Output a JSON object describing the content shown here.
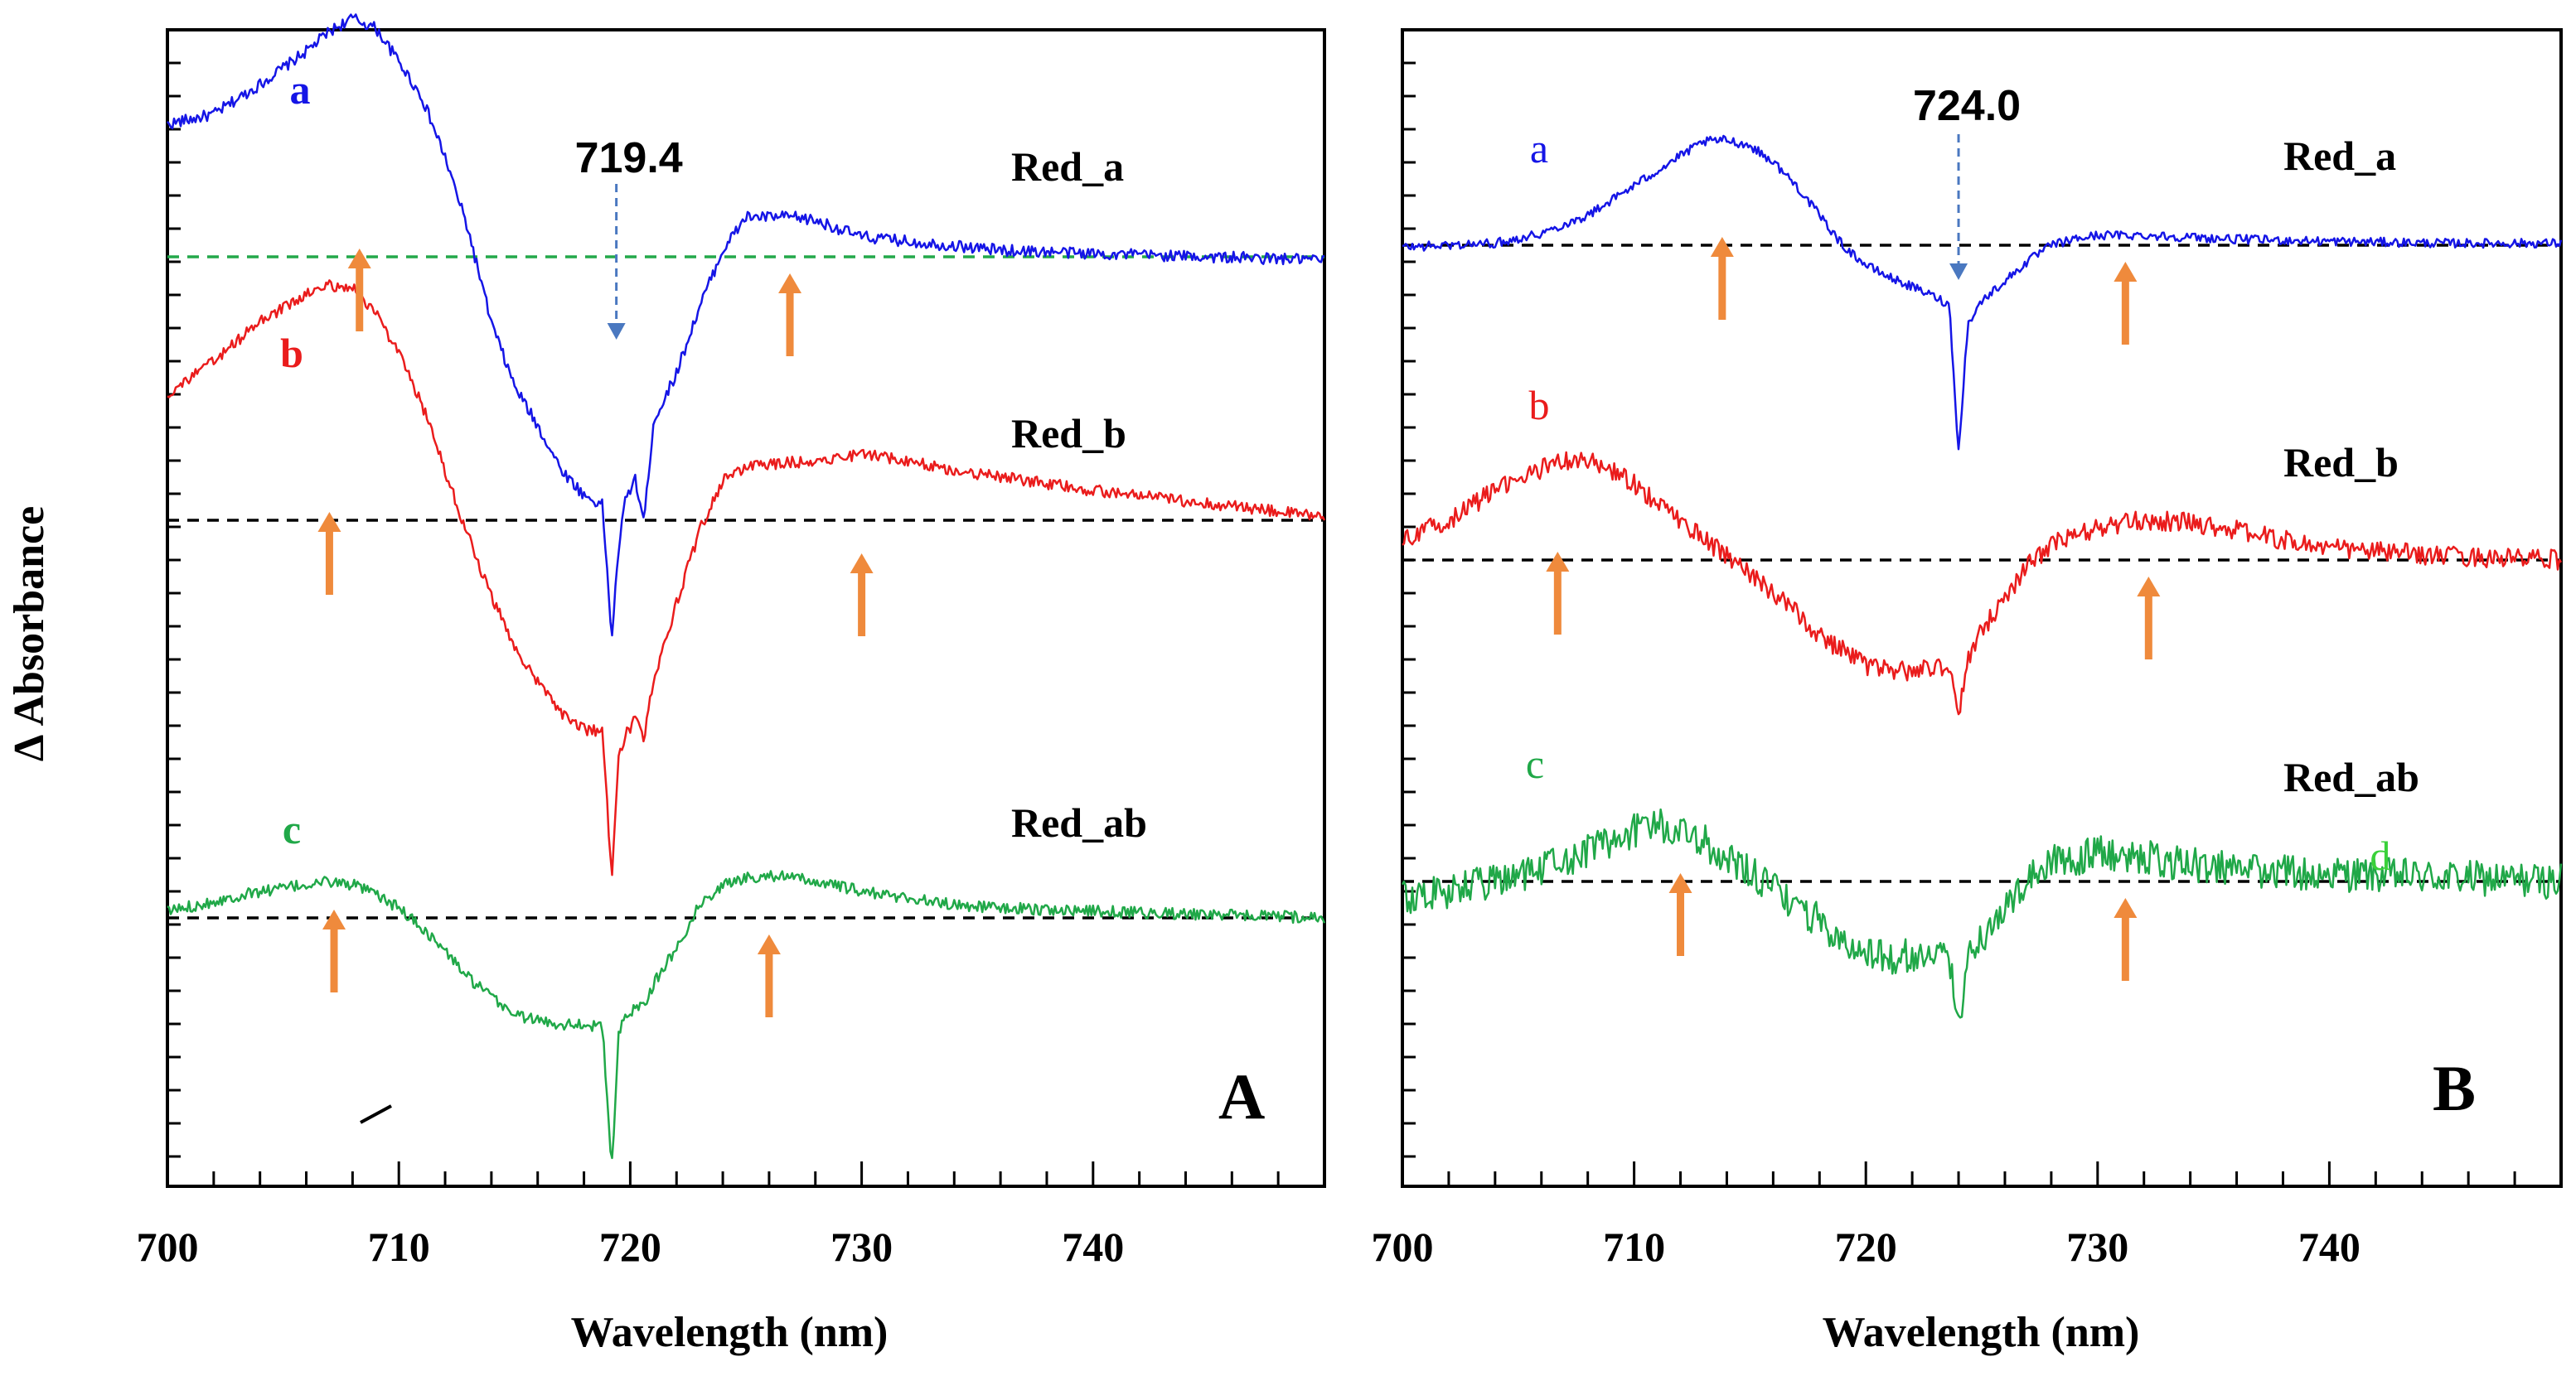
{
  "chart_data": [
    {
      "panel": "A",
      "type": "line",
      "xlabel": "Wavelength (nm)",
      "ylabel": "Δ Absorbance",
      "xlim": [
        700,
        750
      ],
      "xticks": [
        700,
        710,
        720,
        730,
        740
      ],
      "xtick_labels": [
        "700",
        "710",
        "720",
        "730",
        "740"
      ],
      "peak_label": "719.4",
      "peak_x": 719.4,
      "series": [
        {
          "name": "Red_a",
          "letter": "a",
          "color": "#1515e6",
          "baseline_color": "#23a84a",
          "offset": 0,
          "x": [
            700,
            702,
            704,
            706,
            707,
            708,
            709,
            710,
            711,
            712,
            713,
            714,
            715,
            716,
            717,
            718,
            718.8,
            719.2,
            719.5,
            719.8,
            720.2,
            720.6,
            721,
            722,
            723,
            724,
            725,
            726,
            727,
            728,
            730,
            733,
            736,
            740,
            745,
            750
          ],
          "values": [
            4.0,
            4.3,
            5.2,
            6.2,
            6.8,
            7.2,
            6.9,
            5.9,
            4.8,
            3.0,
            0.8,
            -2.0,
            -3.9,
            -5.1,
            -6.4,
            -7.2,
            -7.5,
            -11.5,
            -8.8,
            -7.3,
            -6.7,
            -8.0,
            -5.0,
            -3.5,
            -1.5,
            0.2,
            1.2,
            1.2,
            1.2,
            1.1,
            0.6,
            0.4,
            0.2,
            0.1,
            0.0,
            -0.1
          ],
          "arrows": [
            708.3,
            726.9
          ]
        },
        {
          "name": "Red_b",
          "letter": "b",
          "color": "#ea1c1c",
          "baseline_color": "#000000",
          "offset": -8,
          "x": [
            700,
            702,
            704,
            706,
            707,
            708,
            709,
            710,
            711,
            712,
            713,
            714,
            715,
            716,
            717,
            718,
            718.8,
            719.2,
            719.5,
            719.8,
            720.2,
            720.6,
            721,
            722,
            723,
            724,
            725,
            726,
            728,
            730,
            732,
            734,
            736,
            740,
            745,
            750
          ],
          "values": [
            3.8,
            4.8,
            6.0,
            6.8,
            7.1,
            7.0,
            6.3,
            5.0,
            3.5,
            1.5,
            -0.5,
            -2.3,
            -3.8,
            -4.9,
            -5.8,
            -6.3,
            -6.4,
            -10.8,
            -7.0,
            -6.5,
            -6.0,
            -6.6,
            -4.8,
            -2.5,
            -0.3,
            1.2,
            1.6,
            1.7,
            1.8,
            2.0,
            1.8,
            1.5,
            1.3,
            0.9,
            0.5,
            0.1
          ],
          "arrows": [
            707.0,
            730.0
          ]
        },
        {
          "name": "Red_ab",
          "letter": "c",
          "color": "#20a848",
          "baseline_color": "#000000",
          "offset": -20,
          "x": [
            700,
            702,
            704,
            706,
            707,
            708,
            709,
            710,
            711,
            712,
            713,
            714,
            715,
            716,
            717,
            718,
            718.8,
            719.2,
            719.5,
            719.8,
            720.2,
            720.6,
            721,
            722,
            723,
            724,
            725,
            726,
            728,
            730,
            732,
            734,
            736,
            740,
            745,
            750
          ],
          "values": [
            0.2,
            0.5,
            0.8,
            1.0,
            1.1,
            1.0,
            0.7,
            0.3,
            -0.3,
            -1.0,
            -1.8,
            -2.4,
            -2.9,
            -3.1,
            -3.2,
            -3.2,
            -3.3,
            -7.6,
            -3.5,
            -3.0,
            -2.7,
            -2.6,
            -2.0,
            -0.9,
            0.4,
            1.0,
            1.2,
            1.3,
            1.1,
            0.8,
            0.6,
            0.4,
            0.3,
            0.2,
            0.1,
            0.0
          ],
          "arrows": [
            707.2,
            726.0
          ]
        }
      ]
    },
    {
      "panel": "B",
      "type": "line",
      "xlabel": "Wavelength (nm)",
      "ylabel": "",
      "xlim": [
        700,
        750
      ],
      "xticks": [
        700,
        710,
        720,
        730,
        740
      ],
      "xtick_labels": [
        "700",
        "710",
        "720",
        "730",
        "740"
      ],
      "peak_label": "724.0",
      "peak_x": 724.0,
      "extra_label": "d",
      "series": [
        {
          "name": "Red_a",
          "letter": "a",
          "color": "#1515e6",
          "baseline_color": "#000000",
          "offset": 0,
          "x": [
            700,
            702,
            704,
            706,
            708,
            710,
            712,
            713,
            714,
            715,
            716,
            717,
            718,
            719,
            720,
            721,
            722,
            723,
            723.6,
            724.0,
            724.4,
            725,
            726,
            727,
            728,
            729,
            730,
            732,
            734,
            736,
            740,
            745,
            750
          ],
          "values": [
            -0.1,
            0.0,
            0.1,
            0.6,
            1.5,
            3.0,
            4.5,
            5.2,
            5.3,
            5.0,
            4.2,
            3.0,
            1.5,
            0.0,
            -1.0,
            -1.6,
            -2.1,
            -2.6,
            -3.0,
            -10.4,
            -4.0,
            -2.8,
            -1.8,
            -0.8,
            0.0,
            0.3,
            0.5,
            0.5,
            0.4,
            0.3,
            0.2,
            0.1,
            0.1
          ],
          "arrows": [
            713.8,
            731.2
          ]
        },
        {
          "name": "Red_b",
          "letter": "b",
          "color": "#ea1c1c",
          "baseline_color": "#000000",
          "offset": -15,
          "x": [
            700,
            702,
            704,
            706,
            707,
            708,
            709,
            710,
            712,
            714,
            716,
            718,
            720,
            721,
            722,
            723,
            723.6,
            724.0,
            724.4,
            725,
            726,
            727,
            728,
            730,
            732,
            734,
            736,
            738,
            740,
            745,
            750
          ],
          "values": [
            1.0,
            2.0,
            3.5,
            4.6,
            5.0,
            5.0,
            4.5,
            3.8,
            2.0,
            0.2,
            -1.6,
            -3.8,
            -5.3,
            -5.6,
            -5.6,
            -5.3,
            -5.4,
            -7.8,
            -5.0,
            -3.6,
            -1.8,
            -0.3,
            0.8,
            1.6,
            2.0,
            1.9,
            1.5,
            1.0,
            0.6,
            0.2,
            0.0
          ],
          "arrows": [
            706.7,
            732.2
          ]
        },
        {
          "name": "Red_ab",
          "letter": "c",
          "color": "#20a848",
          "baseline_color": "#000000",
          "offset": -31,
          "x": [
            700,
            702,
            704,
            706,
            708,
            710,
            711,
            712,
            713,
            714,
            715,
            716,
            717,
            718,
            719,
            720,
            721,
            722,
            723,
            723.6,
            724.0,
            724.4,
            725,
            726,
            727,
            728,
            730,
            732,
            734,
            736,
            740,
            745,
            750
          ],
          "values": [
            -0.8,
            -0.5,
            0.0,
            0.6,
            1.6,
            2.6,
            2.8,
            2.6,
            2.0,
            1.2,
            0.4,
            -0.4,
            -1.2,
            -2.0,
            -3.0,
            -3.6,
            -3.8,
            -3.8,
            -3.8,
            -4.0,
            -7.5,
            -3.5,
            -2.8,
            -1.5,
            0.2,
            1.0,
            1.4,
            1.2,
            0.8,
            0.6,
            0.4,
            0.2,
            0.0
          ],
          "arrows": [
            712.0,
            731.2
          ]
        }
      ]
    }
  ]
}
